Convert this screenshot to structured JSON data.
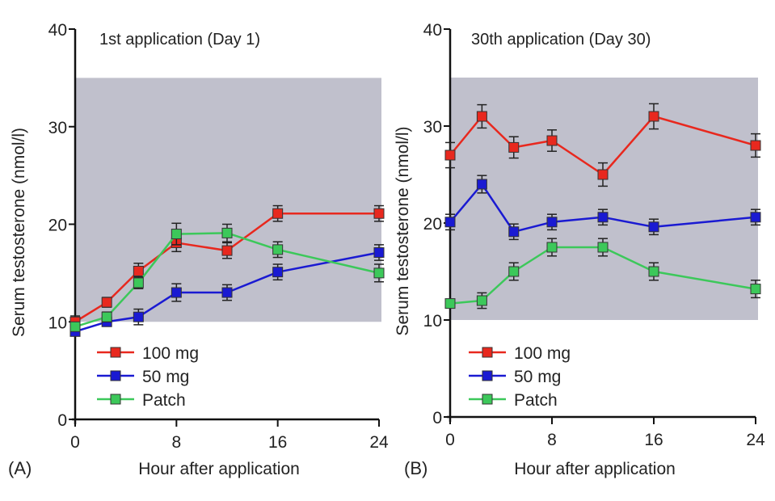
{
  "figure": {
    "shared_ylabel": "Serum testosterone (nmol/l)",
    "shared_xlabel": "Hour after application"
  },
  "chart_data": [
    {
      "type": "line",
      "panel": "(A)",
      "title": "1st application (Day 1)",
      "xlabel": "Hour after application",
      "ylabel": "Serum testosterone (nmol/l)",
      "xlim": [
        0,
        24
      ],
      "ylim": [
        0,
        40
      ],
      "xticks": [
        0,
        8,
        16,
        24
      ],
      "yticks": [
        0,
        10,
        20,
        30,
        40
      ],
      "reference_band": {
        "from": 10,
        "to": 35,
        "color": "#c0c0cc"
      },
      "legend": "bottom-left",
      "x": [
        0,
        2.5,
        5,
        8,
        12,
        16,
        24
      ],
      "series": [
        {
          "name": "100 mg",
          "color": "#e8281e",
          "values": [
            10,
            12,
            15.2,
            18.1,
            17.3,
            21.1,
            21.1
          ],
          "errors": [
            0.6,
            0.5,
            0.8,
            0.9,
            0.8,
            0.8,
            0.8
          ]
        },
        {
          "name": "50 mg",
          "color": "#1a1ad2",
          "values": [
            9,
            10,
            10.5,
            13,
            13,
            15.1,
            17.1
          ],
          "errors": [
            0.4,
            0.4,
            0.8,
            0.9,
            0.8,
            0.8,
            0.8
          ]
        },
        {
          "name": "Patch",
          "color": "#3cc85a",
          "values": [
            9.5,
            10.5,
            14,
            19,
            19.1,
            17.4,
            15
          ],
          "errors": [
            0.4,
            0.5,
            0.6,
            1.1,
            0.9,
            0.8,
            0.9
          ]
        }
      ]
    },
    {
      "type": "line",
      "panel": "(B)",
      "title": "30th application (Day 30)",
      "xlabel": "Hour after application",
      "ylabel": "Serum testosterone (nmol/l)",
      "xlim": [
        0,
        24
      ],
      "ylim": [
        0,
        40
      ],
      "xticks": [
        0,
        8,
        16,
        24
      ],
      "yticks": [
        0,
        10,
        20,
        30,
        40
      ],
      "reference_band": {
        "from": 10,
        "to": 35,
        "color": "#c0c0cc"
      },
      "legend": "bottom-left",
      "x": [
        0,
        2.5,
        5,
        8,
        12,
        16,
        24
      ],
      "series": [
        {
          "name": "100 mg",
          "color": "#e8281e",
          "values": [
            27,
            31,
            27.8,
            28.5,
            25,
            31,
            28
          ],
          "errors": [
            1.3,
            1.2,
            1.1,
            1.1,
            1.2,
            1.3,
            1.2
          ]
        },
        {
          "name": "50 mg",
          "color": "#1a1ad2",
          "values": [
            20.1,
            24,
            19.1,
            20.1,
            20.6,
            19.6,
            20.6
          ],
          "errors": [
            0.8,
            0.9,
            0.8,
            0.8,
            0.8,
            0.8,
            0.8
          ]
        },
        {
          "name": "Patch",
          "color": "#3cc85a",
          "values": [
            11.7,
            12,
            15,
            17.5,
            17.5,
            15,
            13.2
          ],
          "errors": [
            0.3,
            0.8,
            0.9,
            0.9,
            0.9,
            0.9,
            0.9
          ]
        }
      ]
    }
  ]
}
